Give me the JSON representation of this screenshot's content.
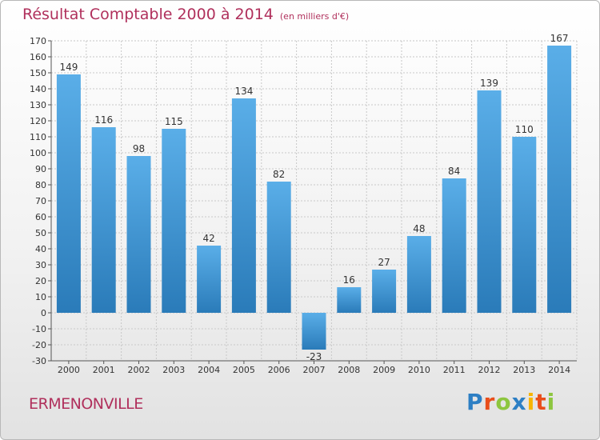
{
  "page": {
    "title": "Résultat Comptable 2000 à 2014",
    "subtitle": "(en milliers d'€)",
    "commune": "ERMENONVILLE",
    "logo": "Proxiti"
  },
  "colors": {
    "bar_light": "#5aaee8",
    "bar_dark": "#2a7bb9",
    "title": "#b0305c",
    "grid": "#c8c8c8"
  },
  "chart_data": {
    "type": "bar",
    "categories": [
      "2000",
      "2001",
      "2002",
      "2003",
      "2004",
      "2005",
      "2006",
      "2007",
      "2008",
      "2009",
      "2010",
      "2011",
      "2012",
      "2013",
      "2014"
    ],
    "values": [
      149,
      116,
      98,
      115,
      42,
      134,
      82,
      -23,
      16,
      27,
      48,
      84,
      139,
      110,
      167
    ],
    "ylim": [
      -30,
      170
    ],
    "yticks": [
      -30,
      -20,
      -10,
      0,
      10,
      20,
      30,
      40,
      50,
      60,
      70,
      80,
      90,
      100,
      110,
      120,
      130,
      140,
      150,
      160,
      170
    ],
    "grid": true,
    "legend": "none"
  }
}
